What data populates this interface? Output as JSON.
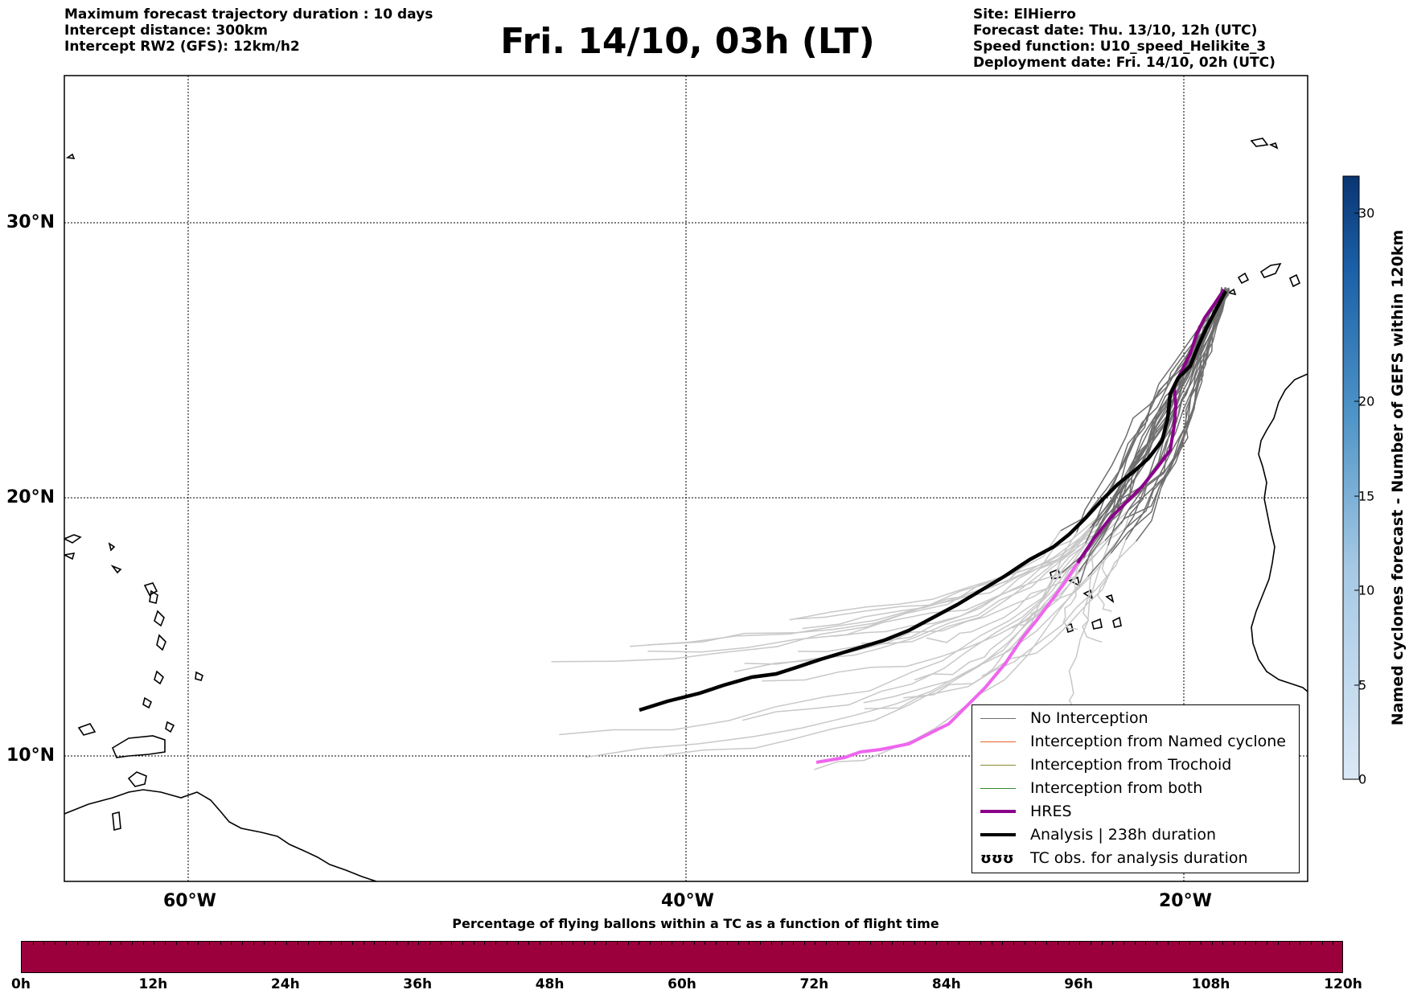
{
  "header": {
    "left_lines": [
      "Maximum forecast trajectory duration : 10 days",
      "Intercept distance: 300km",
      "Intercept RW2 (GFS):  12km/h2"
    ],
    "title": "Fri. 14/10, 03h (LT)",
    "right_lines": [
      "Site: ElHierro",
      "Forecast date: Thu. 13/10, 12h (UTC)",
      "Speed function: U10_speed_Helikite_3",
      "Deployment date: Fri. 14/10, 02h (UTC)"
    ]
  },
  "map": {
    "lat_labels": [
      "30°N",
      "20°N",
      "10°N"
    ],
    "lon_labels": [
      "60°W",
      "40°W",
      "20°W"
    ],
    "colors": {
      "no_interception": "#6e6e6e",
      "no_interception_light": "#c8c8c8",
      "named_cyclone": "#e8622a",
      "trochoid": "#8a8a30",
      "both": "#2e8b2e",
      "hres": "#8b008b",
      "hres_light": "#ee66ee",
      "analysis": "#000000"
    }
  },
  "legend": {
    "items": [
      {
        "label": "No Interception"
      },
      {
        "label": "Interception from Named cyclone"
      },
      {
        "label": "Interception from Trochoid"
      },
      {
        "label": "Interception from both"
      },
      {
        "label": "HRES"
      },
      {
        "label": "Analysis | 238h duration"
      },
      {
        "label": "TC obs. for analysis duration",
        "symbol": "ʊʊʊ"
      }
    ]
  },
  "colorbar": {
    "label": "Named cyclones forecast - Number of GEFS within 120km",
    "ticks": [
      "0",
      "5",
      "10",
      "15",
      "20",
      "30"
    ]
  },
  "time_bar": {
    "title": "Percentage of flying ballons within a TC as a function of flight time",
    "ticks": [
      "0h",
      "12h",
      "24h",
      "36h",
      "48h",
      "60h",
      "72h",
      "84h",
      "96h",
      "108h",
      "120h"
    ],
    "color": "#9b003c"
  }
}
